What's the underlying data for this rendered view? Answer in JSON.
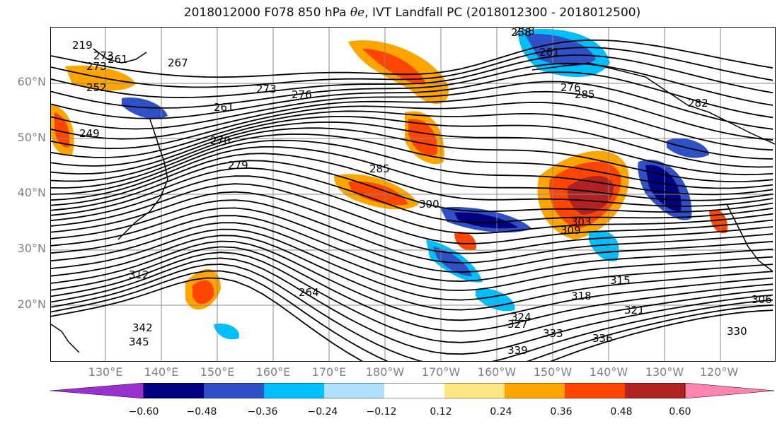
{
  "title": {
    "prefix": "2018012000 F078 850 hPa ",
    "symbol": "θe",
    "suffix": ", IVT Landfall PC (2018012300 - 2018012500)"
  },
  "axes": {
    "lat_labels": [
      "60°N",
      "50°N",
      "40°N",
      "30°N",
      "20°N"
    ],
    "lon_labels": [
      "130°E",
      "140°E",
      "150°E",
      "160°E",
      "170°E",
      "180°W",
      "170°W",
      "160°W",
      "150°W",
      "140°W",
      "130°W",
      "120°W"
    ]
  },
  "contour_labels": [
    "219",
    "261",
    "252",
    "249",
    "258",
    "267",
    "273",
    "276",
    "261",
    "270",
    "279",
    "285",
    "300",
    "303",
    "309",
    "312",
    "318",
    "315",
    "321",
    "324",
    "327",
    "330",
    "333",
    "336",
    "339",
    "342",
    "345",
    "306",
    "282",
    "285",
    "258",
    "261",
    "273",
    "276",
    "273",
    "264"
  ],
  "colorbar": {
    "ticks": [
      "−0.60",
      "−0.48",
      "−0.36",
      "−0.24",
      "−0.12",
      "0.12",
      "0.24",
      "0.36",
      "0.48",
      "0.60"
    ],
    "colors": [
      "#9b30d0",
      "#000080",
      "#3050c8",
      "#00bfff",
      "#b0e0ff",
      "#ffffff",
      "#ffe680",
      "#ffa500",
      "#ff4500",
      "#b22222",
      "#ff85b0"
    ]
  },
  "contour_color": "#000000",
  "gridline_color": "#888888"
}
